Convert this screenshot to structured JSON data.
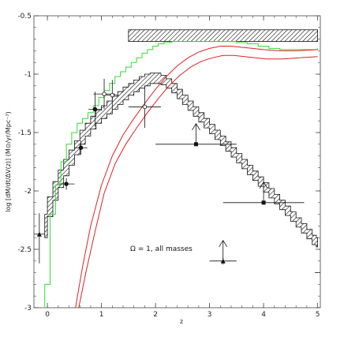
{
  "chart_data": {
    "type": "line",
    "xlabel": "z",
    "ylabel": "log [dM/dt/ΔV(z)] (M⊙/yr/Mpc⁻³)",
    "annotation": "Ω = 1, all masses",
    "xlim": [
      -0.25,
      5.05
    ],
    "ylim": [
      -3,
      -0.5
    ],
    "x_ticks": [
      0,
      1,
      2,
      3,
      4,
      5
    ],
    "y_ticks": [
      -0.5,
      -1,
      -1.5,
      -2,
      -2.5,
      -3
    ],
    "x_tick_labels": [
      "0",
      "1",
      "2",
      "3",
      "4",
      "5"
    ],
    "y_tick_labels": [
      "-0.5",
      "-1",
      "-1.5",
      "-2",
      "-2.5",
      "-3"
    ],
    "grid": false,
    "colors": {
      "green": "#33dd33",
      "red": "#dd2222",
      "ink": "#111111"
    },
    "hatched_bar": {
      "x": [
        1.5,
        5.0
      ],
      "y": [
        -0.72,
        -0.62
      ]
    },
    "band": {
      "x": [
        -0.05,
        0.05,
        0.15,
        0.25,
        0.35,
        0.45,
        0.55,
        0.65,
        0.75,
        0.85,
        0.95,
        1.05,
        1.15,
        1.25,
        1.35,
        1.45,
        1.55,
        1.65,
        1.75,
        1.85,
        1.95,
        2.05,
        2.15,
        2.25,
        2.35,
        2.45,
        2.55,
        2.65,
        2.75,
        2.85,
        2.95,
        3.05,
        3.15,
        3.25,
        3.35,
        3.45,
        3.55,
        3.65,
        3.75,
        3.85,
        3.95,
        4.05,
        4.15,
        4.25,
        4.35,
        4.45,
        4.55,
        4.65,
        4.75,
        4.85,
        4.95,
        5.0
      ],
      "upper": [
        -2.2,
        -2.05,
        -1.92,
        -1.82,
        -1.73,
        -1.65,
        -1.57,
        -1.48,
        -1.42,
        -1.36,
        -1.31,
        -1.27,
        -1.23,
        -1.19,
        -1.15,
        -1.11,
        -1.08,
        -1.05,
        -1.02,
        -1.0,
        -0.99,
        -0.99,
        -1.01,
        -1.04,
        -1.08,
        -1.13,
        -1.18,
        -1.23,
        -1.28,
        -1.33,
        -1.38,
        -1.43,
        -1.48,
        -1.53,
        -1.58,
        -1.63,
        -1.68,
        -1.73,
        -1.78,
        -1.83,
        -1.88,
        -1.93,
        -1.98,
        -2.03,
        -2.08,
        -2.13,
        -2.18,
        -2.23,
        -2.28,
        -2.33,
        -2.38,
        -2.4
      ],
      "lower": [
        -2.4,
        -2.22,
        -2.08,
        -1.97,
        -1.87,
        -1.78,
        -1.69,
        -1.6,
        -1.53,
        -1.47,
        -1.42,
        -1.38,
        -1.34,
        -1.3,
        -1.26,
        -1.22,
        -1.18,
        -1.15,
        -1.12,
        -1.1,
        -1.08,
        -1.08,
        -1.09,
        -1.12,
        -1.16,
        -1.21,
        -1.26,
        -1.31,
        -1.36,
        -1.41,
        -1.46,
        -1.51,
        -1.56,
        -1.61,
        -1.66,
        -1.71,
        -1.76,
        -1.81,
        -1.86,
        -1.91,
        -1.96,
        -2.01,
        -2.06,
        -2.11,
        -2.16,
        -2.21,
        -2.26,
        -2.31,
        -2.36,
        -2.41,
        -2.46,
        -2.48
      ]
    },
    "series": [
      {
        "color": "#33dd33",
        "style": "step",
        "points": [
          [
            -0.1,
            -3.0
          ],
          [
            -0.05,
            -2.8
          ],
          [
            0.05,
            -2.2
          ],
          [
            0.15,
            -1.95
          ],
          [
            0.25,
            -1.75
          ],
          [
            0.35,
            -1.6
          ],
          [
            0.45,
            -1.5
          ],
          [
            0.55,
            -1.42
          ],
          [
            0.65,
            -1.38
          ],
          [
            0.75,
            -1.33
          ],
          [
            0.85,
            -1.27
          ],
          [
            0.95,
            -1.2
          ],
          [
            1.05,
            -1.14
          ],
          [
            1.15,
            -1.08
          ],
          [
            1.25,
            -1.02
          ],
          [
            1.35,
            -0.98
          ],
          [
            1.45,
            -0.94
          ],
          [
            1.55,
            -0.9
          ],
          [
            1.65,
            -0.86
          ],
          [
            1.75,
            -0.82
          ],
          [
            1.85,
            -0.79
          ],
          [
            1.95,
            -0.76
          ],
          [
            2.05,
            -0.74
          ],
          [
            2.15,
            -0.73
          ],
          [
            2.3,
            -0.72
          ],
          [
            2.6,
            -0.72
          ],
          [
            3.0,
            -0.72
          ],
          [
            3.3,
            -0.72
          ],
          [
            3.5,
            -0.73
          ],
          [
            3.7,
            -0.74
          ],
          [
            3.9,
            -0.76
          ],
          [
            4.1,
            -0.78
          ],
          [
            4.3,
            -0.79
          ],
          [
            4.6,
            -0.79
          ],
          [
            5.0,
            -0.78
          ]
        ]
      },
      {
        "color": "#dd2222",
        "style": "line",
        "points": [
          [
            0.52,
            -3.0
          ],
          [
            0.65,
            -2.65
          ],
          [
            0.8,
            -2.3
          ],
          [
            1.0,
            -1.95
          ],
          [
            1.2,
            -1.7
          ],
          [
            1.4,
            -1.52
          ],
          [
            1.6,
            -1.38
          ],
          [
            1.8,
            -1.25
          ],
          [
            2.0,
            -1.13
          ],
          [
            2.2,
            -1.02
          ],
          [
            2.4,
            -0.93
          ],
          [
            2.6,
            -0.86
          ],
          [
            2.8,
            -0.81
          ],
          [
            3.0,
            -0.78
          ],
          [
            3.2,
            -0.76
          ],
          [
            3.4,
            -0.76
          ],
          [
            3.6,
            -0.77
          ],
          [
            3.8,
            -0.78
          ],
          [
            4.0,
            -0.79
          ],
          [
            4.3,
            -0.8
          ],
          [
            4.6,
            -0.8
          ],
          [
            5.0,
            -0.79
          ]
        ]
      },
      {
        "color": "#dd2222",
        "style": "line",
        "points": [
          [
            0.58,
            -3.0
          ],
          [
            0.72,
            -2.68
          ],
          [
            0.88,
            -2.35
          ],
          [
            1.05,
            -2.02
          ],
          [
            1.25,
            -1.77
          ],
          [
            1.45,
            -1.6
          ],
          [
            1.65,
            -1.46
          ],
          [
            1.85,
            -1.33
          ],
          [
            2.05,
            -1.21
          ],
          [
            2.25,
            -1.1
          ],
          [
            2.45,
            -1.01
          ],
          [
            2.65,
            -0.94
          ],
          [
            2.85,
            -0.89
          ],
          [
            3.05,
            -0.86
          ],
          [
            3.25,
            -0.84
          ],
          [
            3.45,
            -0.84
          ],
          [
            3.65,
            -0.85
          ],
          [
            3.85,
            -0.86
          ],
          [
            4.05,
            -0.87
          ],
          [
            4.35,
            -0.87
          ],
          [
            4.65,
            -0.86
          ],
          [
            5.0,
            -0.85
          ]
        ]
      }
    ],
    "errorbars": [
      {
        "x": -0.15,
        "y": -2.37,
        "xerr": 0.1,
        "yerr": [
          0.25,
          0.18
        ],
        "marker": "triangle-up",
        "filled": true
      },
      {
        "x": 0.35,
        "y": -1.94,
        "xerr": 0.15,
        "yerr": 0.05,
        "marker": "circle",
        "filled": true
      },
      {
        "x": 0.62,
        "y": -1.63,
        "xerr": 0.12,
        "yerr": 0.06,
        "marker": "circle",
        "filled": true
      },
      {
        "x": 0.88,
        "y": -1.3,
        "xerr": 0.12,
        "yerr": 0.15,
        "marker": "circle",
        "filled": true
      },
      {
        "x": 1.05,
        "y": -1.17,
        "xerr": 0.2,
        "yerr": 0.13,
        "marker": "circle",
        "filled": false
      },
      {
        "x": 1.2,
        "y": -1.18,
        "xerr": 0.12,
        "yerr": 0.13,
        "marker": "circle",
        "filled": false
      },
      {
        "x": 1.8,
        "y": -1.28,
        "xerr": 0.3,
        "yerr": 0.18,
        "marker": "circle",
        "filled": false
      },
      {
        "x": 2.75,
        "y": -1.6,
        "xerr": 0.75,
        "yerr": 0,
        "marker": "square",
        "filled": true,
        "lower_limit": true
      },
      {
        "x": 4.0,
        "y": -2.1,
        "xerr": 0.75,
        "yerr": 0,
        "marker": "square",
        "filled": true,
        "lower_limit": true
      },
      {
        "x": 3.25,
        "y": -2.6,
        "xerr": 0.25,
        "yerr": 0.03,
        "marker": "triangle-up",
        "filled": true,
        "lower_limit": true
      }
    ],
    "right_limit_tick": {
      "x": [
        4.95,
        5.05
      ],
      "y": [
        -2.7,
        -2.7
      ]
    }
  }
}
